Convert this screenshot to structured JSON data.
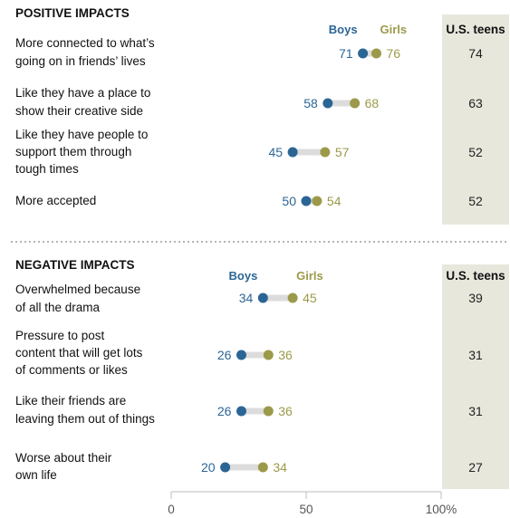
{
  "colors": {
    "boys": "#2b6596",
    "girls": "#9c9a4a",
    "connector": "#dcdcdc",
    "teen_column_bg": "#e8e7dc"
  },
  "chart_data": [
    {
      "type": "dot",
      "title": "POSITIVE IMPACTS",
      "legend": [
        "Boys",
        "Girls"
      ],
      "teen_header": "U.S. teens",
      "xlim": [
        0,
        100
      ],
      "rows": [
        {
          "label": [
            "More connected to what’s",
            "going on in friends’ lives"
          ],
          "boys": 71,
          "girls": 76,
          "teens": 74
        },
        {
          "label": [
            "Like they have a place to",
            "show their creative side"
          ],
          "boys": 58,
          "girls": 68,
          "teens": 63
        },
        {
          "label": [
            "Like they have people to",
            "support them through",
            "tough times"
          ],
          "boys": 45,
          "girls": 57,
          "teens": 52
        },
        {
          "label": [
            "More accepted"
          ],
          "boys": 50,
          "girls": 54,
          "teens": 52
        }
      ]
    },
    {
      "type": "dot",
      "title": "NEGATIVE IMPACTS",
      "legend": [
        "Boys",
        "Girls"
      ],
      "teen_header": "U.S. teens",
      "xlim": [
        0,
        100
      ],
      "rows": [
        {
          "label": [
            "Overwhelmed because",
            "of all the drama"
          ],
          "boys": 34,
          "girls": 45,
          "teens": 39
        },
        {
          "label": [
            "Pressure to post",
            "content that will get lots",
            "of comments or likes"
          ],
          "boys": 26,
          "girls": 36,
          "teens": 31
        },
        {
          "label": [
            "Like their friends are",
            "leaving them out of things"
          ],
          "boys": 26,
          "girls": 36,
          "teens": 31
        },
        {
          "label": [
            "Worse about their",
            "own life"
          ],
          "boys": 20,
          "girls": 34,
          "teens": 27
        }
      ]
    }
  ],
  "axis": {
    "ticks": [
      "0",
      "50",
      "100%"
    ],
    "tick_values": [
      0,
      50,
      100
    ]
  }
}
